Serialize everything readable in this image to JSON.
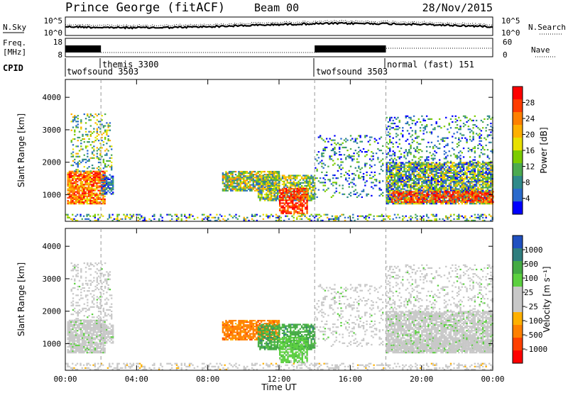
{
  "header": {
    "station": "Prince George (fitACF)",
    "beam": "Beam 00",
    "date": "28/Nov/2015"
  },
  "noise_panel": {
    "left_label": "N.Sky",
    "right_label": "N.Search",
    "left_ticks": [
      "10^5",
      "10^0"
    ],
    "right_ticks": [
      "10^5",
      "10^0"
    ]
  },
  "freq_panel": {
    "left_label_1": "Freq.",
    "left_label_2": "[MHz]",
    "right_label": "Nave",
    "left_ticks": [
      "18",
      "8"
    ],
    "right_ticks": [
      "60",
      "0"
    ]
  },
  "cpid": {
    "label": "CPID",
    "modes": [
      {
        "name": "twofsound 3503",
        "start_hour": 0
      },
      {
        "name": "themis 3300",
        "start_hour": 2
      },
      {
        "name": "twofsound 3503",
        "start_hour": 14
      },
      {
        "name": "normal (fast) 151",
        "start_hour": 18
      }
    ]
  },
  "chart_data": [
    {
      "type": "heatmap",
      "title": "",
      "xlabel": "",
      "ylabel": "Slant Range [km]",
      "xlim": [
        0,
        24
      ],
      "ylim": [
        180,
        4550
      ],
      "yticks": [
        1000,
        2000,
        3000,
        4000
      ],
      "colorbar": {
        "label": "Power [dB]",
        "ticks": [
          "28",
          "24",
          "20",
          "16",
          "12",
          "8",
          "4"
        ],
        "colors": [
          "#ff0000",
          "#ff3c00",
          "#ff8000",
          "#ffb000",
          "#e8e000",
          "#7ccc00",
          "#4caa50",
          "#2f8a8a",
          "#2a6acc",
          "#0000ff"
        ]
      }
    },
    {
      "type": "heatmap",
      "title": "",
      "xlabel": "Time UT",
      "ylabel": "Slant Range [km]",
      "xlim": [
        0,
        24
      ],
      "ylim": [
        180,
        4550
      ],
      "xticks": [
        "00:00",
        "04:00",
        "08:00",
        "12:00",
        "16:00",
        "20:00",
        "00:00"
      ],
      "yticks": [
        1000,
        2000,
        3000,
        4000
      ],
      "colorbar": {
        "label": "Velocity [m s⁻¹]",
        "ticks": [
          "1000",
          "500",
          "100",
          "25",
          "-25",
          "-100",
          "-500",
          "-1000"
        ],
        "colors": [
          "#2050c0",
          "#2f7e7e",
          "#44aa44",
          "#5cd040",
          "#c8c8c8",
          "#c8c8c8",
          "#ffb000",
          "#ff8000",
          "#ff4000",
          "#ff0000"
        ]
      }
    }
  ]
}
